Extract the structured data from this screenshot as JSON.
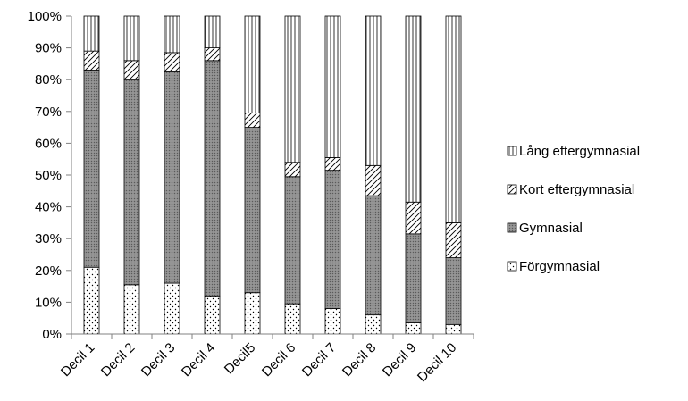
{
  "chart_data": {
    "type": "bar",
    "stacked": true,
    "percent_stacked": true,
    "categories": [
      "Decil 1",
      "Decil 2",
      "Decil 3",
      "Decil 4",
      "Decil5",
      "Decil 6",
      "Decil 7",
      "Decil 8",
      "Decil 9",
      "Decil 10"
    ],
    "series": [
      {
        "name": "Förgymnasial",
        "pattern": "dots",
        "values": [
          21,
          15.5,
          16,
          12,
          13,
          9.5,
          8,
          6,
          3.5,
          3
        ]
      },
      {
        "name": "Gymnasial",
        "pattern": "dense-crosshatch",
        "values": [
          62,
          64.5,
          66.5,
          74,
          52,
          40,
          43.5,
          37.5,
          28,
          21
        ]
      },
      {
        "name": "Kort eftergymnasial",
        "pattern": "diagonal-lines",
        "values": [
          6,
          6,
          6,
          4,
          4.5,
          4.5,
          4,
          9.5,
          10,
          11
        ]
      },
      {
        "name": "Lång eftergymnasial",
        "pattern": "vertical-lines",
        "values": [
          11,
          14,
          11.5,
          10,
          30.5,
          46,
          44.5,
          47,
          58.5,
          65
        ]
      }
    ],
    "legend_order": [
      "Lång eftergymnasial",
      "Kort eftergymnasial",
      "Gymnasial",
      "Förgymnasial"
    ],
    "y_ticks": [
      "0%",
      "10%",
      "20%",
      "30%",
      "40%",
      "50%",
      "60%",
      "70%",
      "80%",
      "90%",
      "100%"
    ],
    "ylim": [
      0,
      100
    ],
    "title": "",
    "xlabel": "",
    "ylabel": "",
    "grid": false,
    "legend_position": "right",
    "colors": {
      "axis": "#808080",
      "bar_border": "#000000",
      "gymnasial_fill": "#8c8c8c"
    }
  }
}
